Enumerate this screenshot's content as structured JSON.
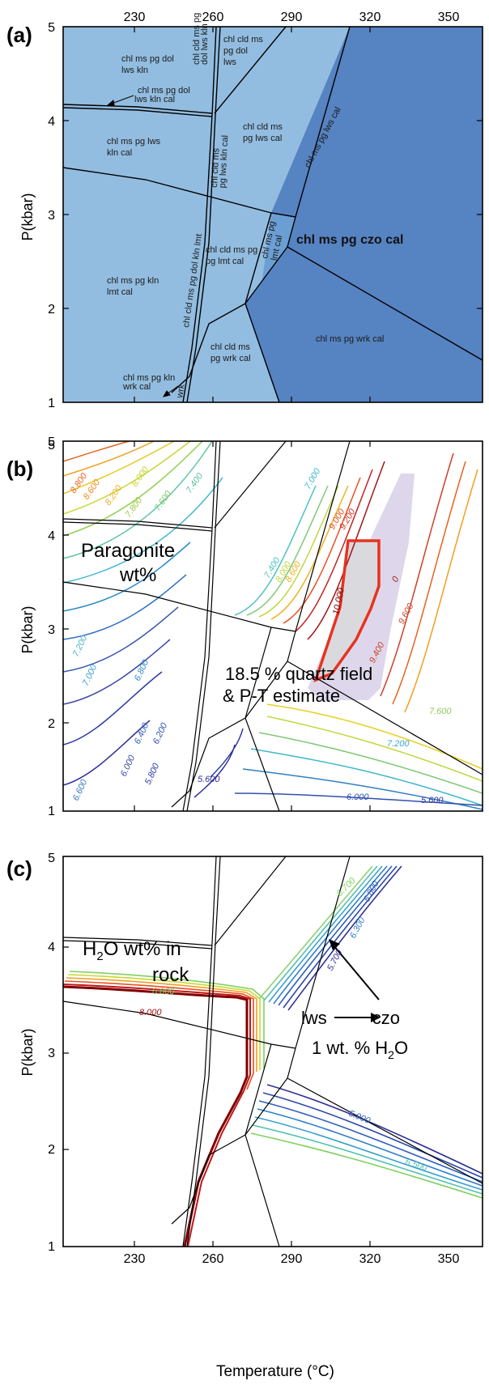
{
  "axes": {
    "x_ticks": [
      "230",
      "260",
      "290",
      "320",
      "350"
    ],
    "y_ticks": [
      "1",
      "2",
      "3",
      "4",
      "5"
    ],
    "ylabel": "P(kbar)",
    "xlabel": "Temperature (°C)"
  },
  "panel_a": {
    "label": "(a)",
    "fields": [
      {
        "id": "f1",
        "lines": [
          "chl  ms  pg  dol",
          "lws  kln"
        ]
      },
      {
        "id": "f2",
        "lines": [
          "chl  ms  pg  dol",
          "lws  kln  cal"
        ]
      },
      {
        "id": "f3",
        "lines": [
          "chl  cld  ms",
          "pg  dol",
          "lws"
        ]
      },
      {
        "id": "f4",
        "lines": [
          "chl  ms  pg  lws",
          "kln  cal"
        ]
      },
      {
        "id": "f5",
        "lines": [
          "chl  cld  ms",
          "pg  lws  cal"
        ]
      },
      {
        "id": "f6",
        "lines": [
          "chl  ms  pg  lws  cal"
        ]
      },
      {
        "id": "f7",
        "lines": [
          "chl  cld  ms  pg",
          "pg  lmt  cal"
        ]
      },
      {
        "id": "f8",
        "lines": [
          "chl  ms  pg",
          "lmt  cal"
        ]
      },
      {
        "id": "f9",
        "lines": [
          "chl  ms  pg  kln",
          "lmt  cal"
        ]
      },
      {
        "id": "f10",
        "lines": [
          "chl  ms  pg  czo  cal"
        ]
      },
      {
        "id": "f11",
        "lines": [
          "chl  ms  pg  wrk  cal"
        ]
      },
      {
        "id": "f12",
        "lines": [
          "chl  cld  ms",
          "pg  wrk  cal"
        ]
      },
      {
        "id": "f13",
        "lines": [
          "chl  ms  pg  kln",
          "wrk  cal"
        ]
      },
      {
        "id": "f14",
        "lines": [
          "chl  cld  ms  pg  dol  kln  lmt"
        ]
      },
      {
        "id": "f15",
        "lines": [
          "chl  cld  ms  pg",
          "dol  lws  kln"
        ]
      },
      {
        "id": "f16",
        "lines": [
          "chl  cld  ms",
          "pg  lws  kln  cal"
        ]
      },
      {
        "id": "f17",
        "lines": [
          "wrk"
        ]
      }
    ]
  },
  "panel_b": {
    "label": "(b)",
    "title_lines": [
      "Paragonite",
      "wt%"
    ],
    "annotation_lines": [
      "18.5 % quartz field",
      "& P-T estimate"
    ],
    "contour_labels": [
      "8.800",
      "8.600",
      "8.200",
      "8.000",
      "7.800",
      "7.600",
      "7.400",
      "7.000",
      "9.000",
      "9.200",
      "7.400",
      "8.000",
      "8.600",
      "10.000",
      "9.600",
      "9.400",
      "0",
      "7.200",
      "7.000",
      "6.800",
      "6.400",
      "6.200",
      "6.000",
      "5.800",
      "6.600",
      "5.600",
      "6.000",
      "5.600",
      "7.600",
      "7.200"
    ]
  },
  "panel_c": {
    "label": "(c)",
    "title_parts": {
      "a": "H",
      "sub": "2",
      "b": "O wt% in",
      "line2": "rock"
    },
    "annotation": {
      "a": "lws",
      "b": "czo",
      "line2a": "1 wt. % H",
      "sub": "2",
      "line2b": "O"
    },
    "contour_labels": [
      "6.800",
      "8.000",
      "6.700",
      "5.800",
      "6.300",
      "5.700",
      "5.900",
      "6.500"
    ]
  },
  "colors": {
    "field_light": "#93bde0",
    "field_mid": "#6b9fd4",
    "field_dark": "#5683c2",
    "estimate_box": "#e8321e",
    "estimate_fill": "#d9d9de",
    "quartz_field": "#d8d0e8"
  }
}
